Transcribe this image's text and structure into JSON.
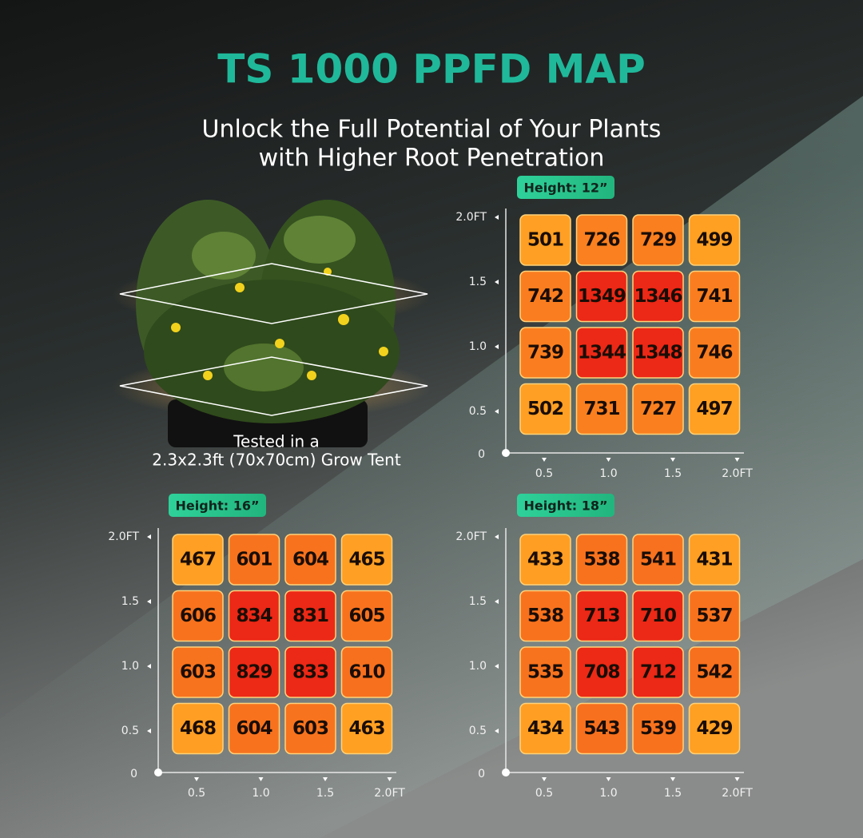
{
  "title": "TS 1000 PPFD MAP",
  "subtitle": [
    "Unlock the Full Potential of Your Plants",
    "with Higher Root Penetration"
  ],
  "caption": [
    "Tested in a",
    "2.3x2.3ft (70x70cm) Grow Tent"
  ],
  "maps": [
    {
      "height": "Height: 12”",
      "rows": [
        [
          501,
          726,
          729,
          499
        ],
        [
          742,
          1349,
          1346,
          741
        ],
        [
          739,
          1344,
          1348,
          746
        ],
        [
          502,
          731,
          727,
          497
        ]
      ],
      "yticks": [
        "2.0FT",
        "1.5",
        "1.0",
        "0.5"
      ],
      "origin": "0",
      "xticks": [
        "0.5",
        "1.0",
        "1.5",
        "2.0FT"
      ]
    },
    {
      "height": "Height: 16”",
      "rows": [
        [
          467,
          601,
          604,
          465
        ],
        [
          606,
          834,
          831,
          605
        ],
        [
          603,
          829,
          833,
          610
        ],
        [
          468,
          604,
          603,
          463
        ]
      ],
      "yticks": [
        "2.0FT",
        "1.5",
        "1.0",
        "0.5"
      ],
      "origin": "0",
      "xticks": [
        "0.5",
        "1.0",
        "1.5",
        "2.0FT"
      ]
    },
    {
      "height": "Height: 18”",
      "rows": [
        [
          433,
          538,
          541,
          431
        ],
        [
          538,
          713,
          710,
          537
        ],
        [
          535,
          708,
          712,
          542
        ],
        [
          434,
          543,
          539,
          429
        ]
      ],
      "yticks": [
        "2.0FT",
        "1.5",
        "1.0",
        "0.5"
      ],
      "origin": "0",
      "xticks": [
        "0.5",
        "1.0",
        "1.5",
        "2.0FT"
      ]
    }
  ]
}
